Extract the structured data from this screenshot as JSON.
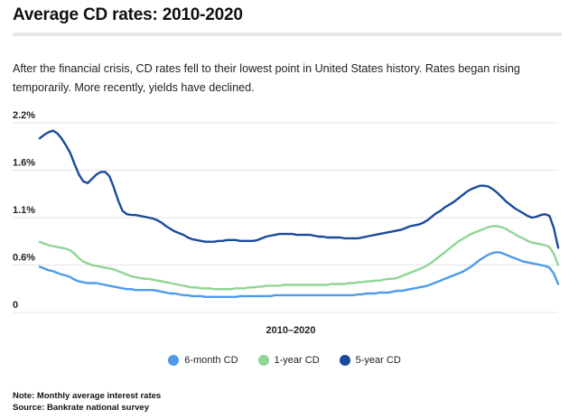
{
  "header": {
    "title": "Average CD rates: 2010-2020",
    "subtitle": "After the financial crisis, CD rates fell to their lowest point in United States history. Rates began rising temporarily. More recently, yields have declined."
  },
  "notes": {
    "note": "Note: Monthly average interest rates",
    "source": "Source: Bankrate national survey"
  },
  "chart_data": {
    "type": "line",
    "xlabel": "2010–2020",
    "ylabel": "",
    "ylim": [
      0,
      2.2
    ],
    "yticks": [
      "0",
      "0.6%",
      "1.1%",
      "1.6%",
      "2.2%"
    ],
    "ytick_values": [
      0,
      0.55,
      1.1,
      1.65,
      2.2
    ],
    "grid": true,
    "legend_position": "bottom",
    "points_per_series": 120,
    "series": [
      {
        "name": "6-month CD",
        "color": "#4e9be8",
        "values": [
          0.53,
          0.51,
          0.49,
          0.48,
          0.46,
          0.44,
          0.43,
          0.41,
          0.38,
          0.36,
          0.35,
          0.34,
          0.34,
          0.34,
          0.33,
          0.32,
          0.31,
          0.3,
          0.29,
          0.28,
          0.27,
          0.27,
          0.26,
          0.26,
          0.26,
          0.26,
          0.26,
          0.25,
          0.24,
          0.23,
          0.22,
          0.22,
          0.21,
          0.2,
          0.2,
          0.19,
          0.19,
          0.19,
          0.18,
          0.18,
          0.18,
          0.18,
          0.18,
          0.18,
          0.18,
          0.18,
          0.19,
          0.19,
          0.19,
          0.19,
          0.19,
          0.19,
          0.19,
          0.19,
          0.2,
          0.2,
          0.2,
          0.2,
          0.2,
          0.2,
          0.2,
          0.2,
          0.2,
          0.2,
          0.2,
          0.2,
          0.2,
          0.2,
          0.2,
          0.2,
          0.2,
          0.2,
          0.2,
          0.21,
          0.21,
          0.22,
          0.22,
          0.22,
          0.23,
          0.23,
          0.23,
          0.24,
          0.25,
          0.25,
          0.26,
          0.27,
          0.28,
          0.29,
          0.3,
          0.31,
          0.33,
          0.35,
          0.37,
          0.39,
          0.41,
          0.43,
          0.45,
          0.47,
          0.5,
          0.53,
          0.57,
          0.61,
          0.64,
          0.67,
          0.69,
          0.7,
          0.69,
          0.67,
          0.65,
          0.63,
          0.61,
          0.59,
          0.58,
          0.57,
          0.56,
          0.55,
          0.54,
          0.52,
          0.45,
          0.33
        ]
      },
      {
        "name": "1-year CD",
        "color": "#8fd694",
        "values": [
          0.82,
          0.8,
          0.78,
          0.77,
          0.76,
          0.75,
          0.74,
          0.72,
          0.68,
          0.63,
          0.59,
          0.57,
          0.55,
          0.54,
          0.53,
          0.52,
          0.51,
          0.5,
          0.48,
          0.46,
          0.44,
          0.42,
          0.41,
          0.4,
          0.39,
          0.39,
          0.38,
          0.37,
          0.36,
          0.35,
          0.34,
          0.33,
          0.32,
          0.31,
          0.3,
          0.29,
          0.29,
          0.28,
          0.28,
          0.28,
          0.27,
          0.27,
          0.27,
          0.27,
          0.27,
          0.28,
          0.28,
          0.28,
          0.29,
          0.29,
          0.3,
          0.3,
          0.31,
          0.31,
          0.31,
          0.31,
          0.32,
          0.32,
          0.32,
          0.32,
          0.32,
          0.32,
          0.32,
          0.32,
          0.32,
          0.32,
          0.32,
          0.33,
          0.33,
          0.33,
          0.33,
          0.34,
          0.34,
          0.35,
          0.35,
          0.36,
          0.36,
          0.37,
          0.37,
          0.38,
          0.39,
          0.39,
          0.4,
          0.42,
          0.44,
          0.46,
          0.48,
          0.5,
          0.52,
          0.55,
          0.58,
          0.62,
          0.66,
          0.7,
          0.74,
          0.78,
          0.82,
          0.85,
          0.88,
          0.91,
          0.93,
          0.95,
          0.97,
          0.99,
          1.0,
          1.0,
          0.99,
          0.97,
          0.94,
          0.91,
          0.88,
          0.86,
          0.83,
          0.81,
          0.8,
          0.79,
          0.78,
          0.76,
          0.68,
          0.55
        ]
      },
      {
        "name": "5-year CD",
        "color": "#1a4a9c",
        "values": [
          2.02,
          2.06,
          2.09,
          2.11,
          2.08,
          2.02,
          1.94,
          1.85,
          1.72,
          1.6,
          1.52,
          1.5,
          1.55,
          1.6,
          1.63,
          1.63,
          1.58,
          1.45,
          1.3,
          1.18,
          1.14,
          1.13,
          1.13,
          1.12,
          1.11,
          1.1,
          1.09,
          1.07,
          1.04,
          1.0,
          0.97,
          0.94,
          0.92,
          0.9,
          0.87,
          0.85,
          0.84,
          0.83,
          0.82,
          0.82,
          0.82,
          0.83,
          0.83,
          0.84,
          0.84,
          0.84,
          0.83,
          0.83,
          0.83,
          0.83,
          0.84,
          0.86,
          0.88,
          0.89,
          0.9,
          0.91,
          0.91,
          0.91,
          0.91,
          0.9,
          0.9,
          0.9,
          0.9,
          0.89,
          0.88,
          0.88,
          0.87,
          0.87,
          0.87,
          0.87,
          0.86,
          0.86,
          0.86,
          0.86,
          0.87,
          0.88,
          0.89,
          0.9,
          0.91,
          0.92,
          0.93,
          0.94,
          0.95,
          0.96,
          0.98,
          1.0,
          1.01,
          1.02,
          1.04,
          1.07,
          1.11,
          1.15,
          1.18,
          1.22,
          1.25,
          1.28,
          1.32,
          1.36,
          1.4,
          1.43,
          1.45,
          1.47,
          1.47,
          1.46,
          1.43,
          1.39,
          1.34,
          1.29,
          1.25,
          1.21,
          1.18,
          1.15,
          1.12,
          1.1,
          1.11,
          1.13,
          1.14,
          1.12,
          0.98,
          0.75
        ]
      }
    ]
  }
}
